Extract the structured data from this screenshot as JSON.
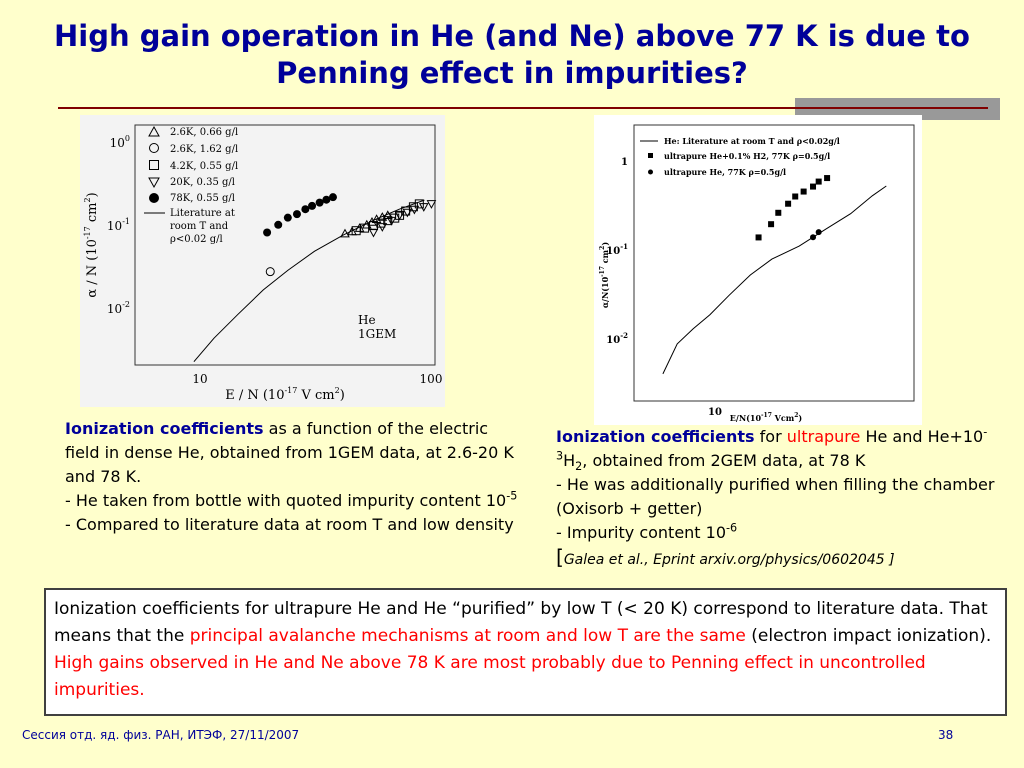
{
  "slide": {
    "title_line1": "High gain operation in He (and Ne) above 77 K is due to",
    "title_line2": "Penning effect in impurities?",
    "colors": {
      "background": "#ffffcc",
      "title": "#000099",
      "rule": "#800000",
      "highlight": "#ff0000"
    }
  },
  "caption_left": {
    "kw": "Ionization coefficients",
    "t1": " as a function of the electric field in dense He, obtained from 1GEM data, at 2.6-20 K and 78 K.",
    "t2": "- He taken from bottle with quoted impurity content 10",
    "t2_sup": "-5",
    "t3": "- Compared to literature data at room T and low density"
  },
  "caption_right": {
    "kw": "Ionization coefficients",
    "t1": " for ",
    "ultrapure": "ultrapure",
    "t2": " He and He+10",
    "sup1": "-3",
    "t3": "H",
    "sub1": "2",
    "t4": ", obtained from 2GEM data, at 78 K",
    "t5": "- He was additionally purified when filling the chamber (Oxisorb + getter)",
    "t6": "- Impurity content 10",
    "sup2": "-6",
    "cite_open": "[",
    "cite": "Galea et al., Eprint arxiv.org/physics/0602045",
    "cite_close": " ]"
  },
  "summary": {
    "p1": "Ionization coefficients for ultrapure He and He “purified” by low T (< 20 K) correspond to literature data. That means that the ",
    "r1": "principal avalanche mechanisms at room and low T are the same",
    "p2": " (electron impact ionization). ",
    "r2": "High gains observed in He and Ne above 78 K are most probably due to Penning effect in uncontrolled impurities."
  },
  "footer": {
    "left": "Сессия отд. яд. физ. РАН, ИТЭФ, 27/11/2007",
    "right": "38"
  },
  "chart_data": [
    {
      "type": "scatter",
      "xscale": "log",
      "yscale": "log",
      "xlim": [
        5,
        100
      ],
      "ylim": [
        0.0009,
        1.8
      ],
      "xlabel": "E / N (10-17 V cm2)",
      "ylabel": "α / N (10-17 cm2)",
      "xticks": [
        "10",
        "100"
      ],
      "yticks": [
        "10-2",
        "10-1",
        "100"
      ],
      "annotation": [
        "He",
        "1GEM"
      ],
      "legend_position": "top-left",
      "legend": [
        "2.6K, 0.66 g/l",
        "2.6K, 1.62 g/l",
        "4.2K, 0.55 g/l",
        "20K, 0.35 g/l",
        "78K, 0.55 g/l",
        "Literature at",
        "room T and",
        "ρ<0.02 g/l"
      ],
      "series": [
        {
          "name": "2.6K, 0.66 g/l",
          "marker": "triangle-up",
          "x": [
            40.7,
            43.7,
            47.1,
            50.6,
            53.3,
            55.8,
            59.1,
            62.4
          ],
          "y": [
            0.0577,
            0.0617,
            0.0687,
            0.0763,
            0.0834,
            0.091,
            0.0974,
            0.103
          ]
        },
        {
          "name": "2.6K, 1.62 g/l",
          "marker": "circle-open",
          "x": [
            19.3
          ],
          "y": [
            0.0173
          ]
        },
        {
          "name": "4.2K, 0.55 g/l",
          "marker": "square-open",
          "x": [
            45.5,
            49.5,
            54.1,
            58.2,
            62.4,
            66.9,
            70.2,
            74.6,
            80.6,
            85.5
          ],
          "y": [
            0.0633,
            0.0687,
            0.0744,
            0.0805,
            0.0871,
            0.0943,
            0.103,
            0.118,
            0.135,
            0.148
          ]
        },
        {
          "name": "20K, 0.35 g/l",
          "marker": "triangle-down",
          "x": [
            54.1,
            59.1,
            64.8,
            70.2,
            75.9,
            81.4,
            89.4,
            96.5
          ],
          "y": [
            0.0598,
            0.0716,
            0.0871,
            0.103,
            0.113,
            0.124,
            0.135,
            0.148
          ]
        },
        {
          "name": "78K, 0.55 g/l",
          "marker": "circle-filled",
          "x": [
            18.7,
            20.9,
            23.0,
            25.2,
            27.4,
            29.3,
            31.6,
            33.8,
            36.1
          ],
          "y": [
            0.0598,
            0.0763,
            0.0956,
            0.107,
            0.125,
            0.139,
            0.154,
            0.169,
            0.183
          ]
        },
        {
          "name": "Literature at room T and ρ<0.02 g/l",
          "marker": "line",
          "x": [
            9.0,
            11.0,
            14.0,
            18.0,
            23.0,
            30.0,
            40.0,
            55.0,
            70.0,
            90.0
          ],
          "y": [
            0.001,
            0.0021,
            0.0045,
            0.0097,
            0.018,
            0.033,
            0.055,
            0.09,
            0.125,
            0.167
          ]
        }
      ]
    },
    {
      "type": "scatter",
      "xscale": "log",
      "yscale": "log",
      "xlim": [
        7.3,
        104
      ],
      "ylim": [
        0.0011,
        4.7
      ],
      "xlabel": "E/N(10-17 Vcm2)",
      "ylabel": "α/N(10-17 cm2)",
      "xticks": [
        "10"
      ],
      "yticks": [
        "1",
        "10-1",
        "10-2"
      ],
      "legend_position": "top-left",
      "legend": [
        "He: Literature at room T and ρ<0.02g/l",
        "ultrapure He+0.1% H2, 77K ρ=0.5g/l",
        "ultrapure He, 77K ρ=0.5g/l"
      ],
      "series": [
        {
          "name": "He: Literature at room T and ρ<0.02g/l",
          "marker": "line",
          "x": [
            9.6,
            11,
            12.8,
            15,
            18,
            22,
            27,
            35,
            45,
            57,
            70,
            80
          ],
          "y": [
            0.0025,
            0.0062,
            0.0098,
            0.015,
            0.027,
            0.05,
            0.081,
            0.12,
            0.2,
            0.32,
            0.55,
            0.74
          ]
        },
        {
          "name": "ultrapure He+0.1% H2, 77K ρ=0.5g/l",
          "marker": "square-filled",
          "x": [
            23.8,
            26.8,
            28.7,
            31.5,
            33.7,
            36.5,
            39.9,
            42.1,
            45.6
          ],
          "y": [
            0.156,
            0.233,
            0.329,
            0.433,
            0.539,
            0.626,
            0.728,
            0.847,
            0.942
          ]
        },
        {
          "name": "ultrapure He, 77K ρ=0.5g/l",
          "marker": "circle-filled",
          "x": [
            39.9,
            42.1
          ],
          "y": [
            0.157,
            0.183
          ]
        }
      ]
    }
  ]
}
